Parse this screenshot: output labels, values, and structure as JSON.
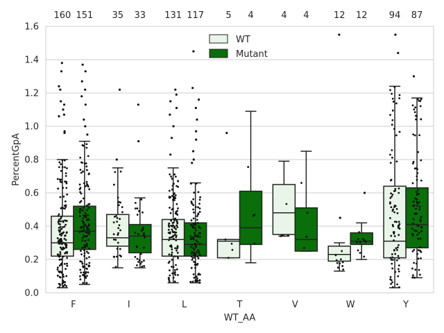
{
  "chart_data": {
    "type": "box",
    "title": "",
    "xlabel": "WT_AA",
    "ylabel": "PercentGpA",
    "ylim": [
      0,
      1.6
    ],
    "yticks": [
      0.0,
      0.2,
      0.4,
      0.6,
      0.8,
      1.0,
      1.2,
      1.4,
      1.6
    ],
    "ytick_labels": [
      "0.0",
      "0.2",
      "0.4",
      "0.6",
      "0.8",
      "1.0",
      "1.2",
      "1.4",
      "1.6"
    ],
    "grid": true,
    "legend_position": "top-center",
    "categories": [
      "F",
      "I",
      "L",
      "T",
      "V",
      "W",
      "Y"
    ],
    "colors": {
      "WT": "#eaf5ea",
      "Mutant": "#0a6e0a",
      "edge": "#222222",
      "grid": "#cccccc"
    },
    "series": [
      {
        "name": "WT",
        "counts": [
          "160",
          "35",
          "131",
          "5",
          "4",
          "12",
          "94"
        ],
        "boxes": [
          {
            "whislo": 0.03,
            "q1": 0.22,
            "med": 0.3,
            "q3": 0.46,
            "whishi": 0.8,
            "outliers": [
              0.96,
              0.97,
              1.06,
              1.07,
              1.1,
              1.13,
              1.15,
              1.22,
              1.24,
              1.33,
              1.38
            ]
          },
          {
            "whislo": 0.15,
            "q1": 0.28,
            "med": 0.33,
            "q3": 0.47,
            "whishi": 0.75,
            "outliers": [
              0.8,
              1.22
            ]
          },
          {
            "whislo": 0.06,
            "q1": 0.22,
            "med": 0.32,
            "q3": 0.44,
            "whishi": 0.75,
            "outliers": [
              0.83,
              0.93,
              1.0,
              1.07,
              1.11,
              1.15,
              1.19,
              1.22
            ]
          },
          {
            "whislo": 0.21,
            "q1": 0.21,
            "med": 0.31,
            "q3": 0.32,
            "whishi": 0.32,
            "outliers": [
              0.96
            ]
          },
          {
            "whislo": 0.34,
            "q1": 0.35,
            "med": 0.48,
            "q3": 0.65,
            "whishi": 0.79,
            "outliers": []
          },
          {
            "whislo": 0.13,
            "q1": 0.19,
            "med": 0.23,
            "q3": 0.28,
            "whishi": 0.3,
            "outliers": [
              0.45,
              1.55
            ]
          },
          {
            "whislo": 0.03,
            "q1": 0.21,
            "med": 0.31,
            "q3": 0.64,
            "whishi": 1.24,
            "outliers": [
              1.44,
              1.55
            ]
          }
        ]
      },
      {
        "name": "Mutant",
        "counts": [
          "151",
          "33",
          "117",
          "4",
          "4",
          "12",
          "87"
        ],
        "boxes": [
          {
            "whislo": 0.05,
            "q1": 0.26,
            "med": 0.37,
            "q3": 0.52,
            "whishi": 0.91,
            "outliers": [
              0.95,
              1.0,
              1.04,
              1.13,
              1.18,
              1.22,
              1.27,
              1.33,
              1.37
            ]
          },
          {
            "whislo": 0.15,
            "q1": 0.24,
            "med": 0.34,
            "q3": 0.41,
            "whishi": 0.57,
            "outliers": [
              0.91,
              1.13
            ]
          },
          {
            "whislo": 0.06,
            "q1": 0.22,
            "med": 0.29,
            "q3": 0.42,
            "whishi": 0.66,
            "outliers": [
              0.78,
              0.8,
              0.85,
              0.92,
              0.97,
              1.04,
              1.11,
              1.16,
              1.23,
              1.45
            ]
          },
          {
            "whislo": 0.18,
            "q1": 0.29,
            "med": 0.39,
            "q3": 0.61,
            "whishi": 1.09,
            "outliers": []
          },
          {
            "whislo": 0.25,
            "q1": 0.25,
            "med": 0.32,
            "q3": 0.51,
            "whishi": 0.85,
            "outliers": []
          },
          {
            "whislo": 0.2,
            "q1": 0.29,
            "med": 0.31,
            "q3": 0.36,
            "whishi": 0.42,
            "outliers": [
              0.6
            ]
          },
          {
            "whislo": 0.09,
            "q1": 0.27,
            "med": 0.41,
            "q3": 0.63,
            "whishi": 1.17,
            "outliers": [
              1.3
            ]
          }
        ]
      }
    ]
  }
}
